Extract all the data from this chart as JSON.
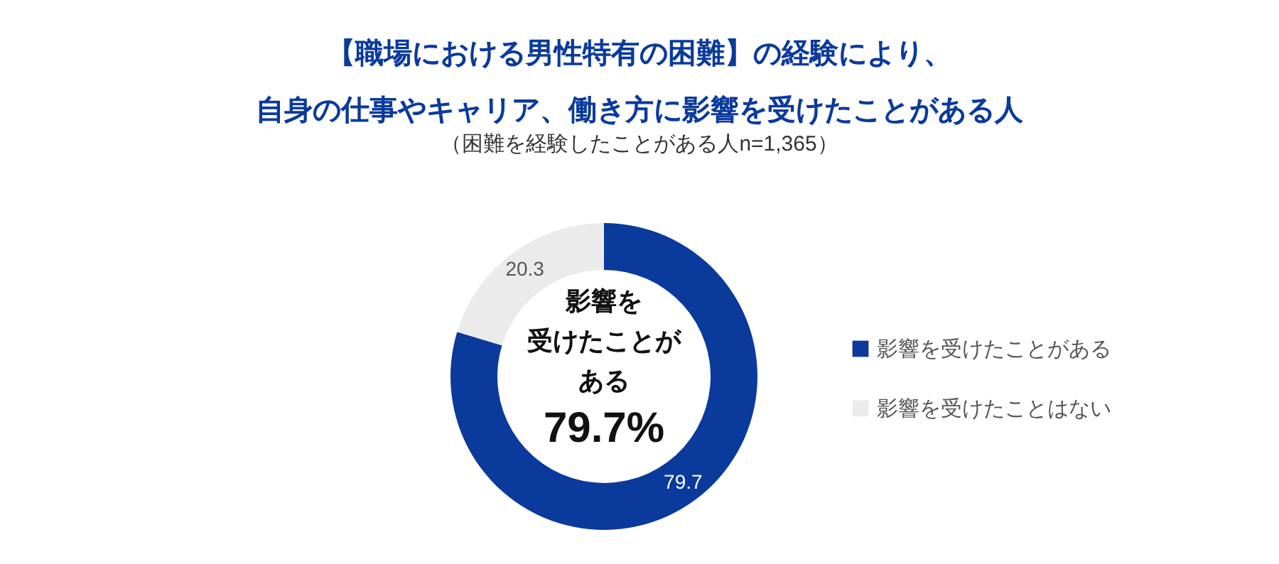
{
  "chart_data": {
    "type": "donut",
    "title": "【職場における男性特有の困難】の経験により、自身の仕事やキャリア、働き方に影響を受けたことがある人",
    "subtitle": "（困難を経験したことがある人n=1,365）",
    "categories": [
      "影響を受けたことがある",
      "影響を受けたことはない"
    ],
    "values": [
      79.7,
      20.3
    ],
    "colors": [
      "#0a3a9c",
      "#ebebeb"
    ],
    "data_labels": true,
    "legend": "right",
    "annotations": [
      "影響を",
      "受けたことが",
      "ある",
      "79.7%"
    ]
  }
}
